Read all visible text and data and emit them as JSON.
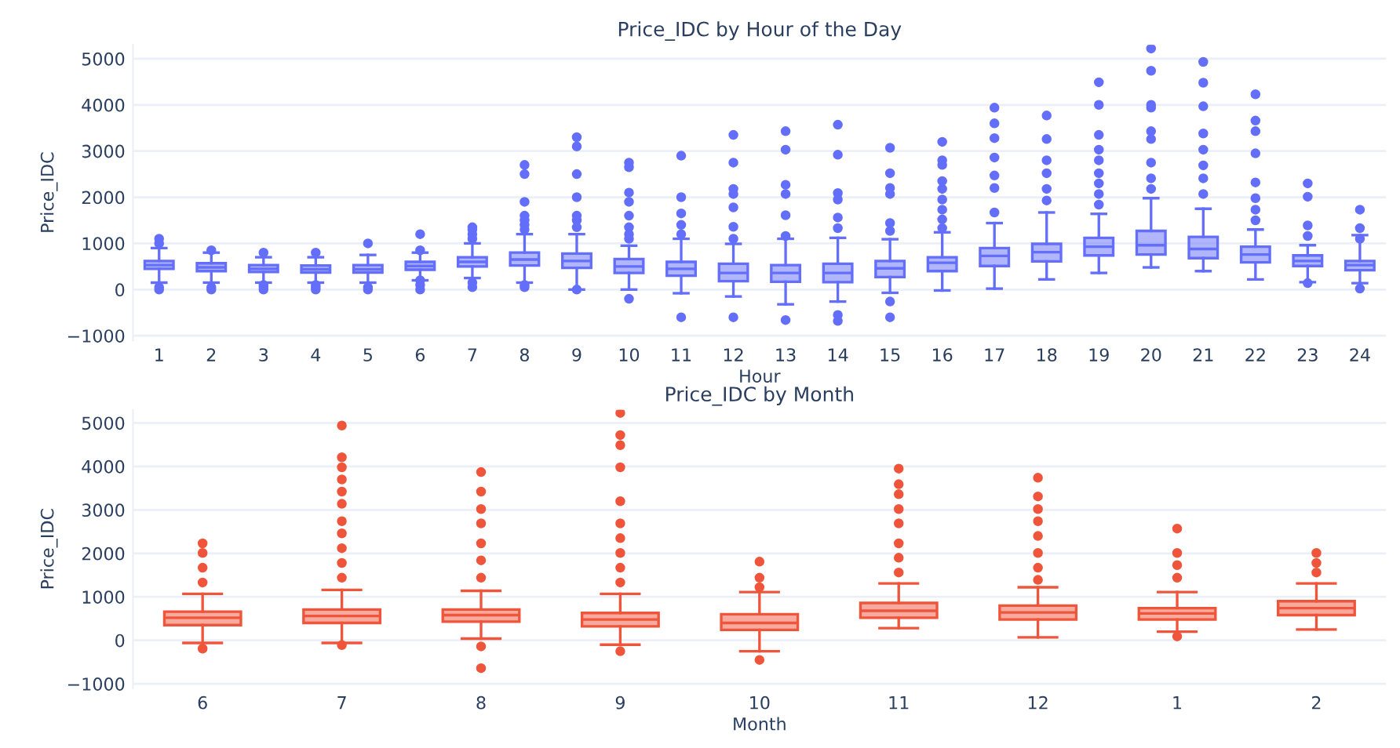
{
  "chart_data": [
    {
      "type": "box",
      "title": "Price_IDC by Hour of the Day",
      "xlabel": "Hour",
      "ylabel": "Price_IDC",
      "color": "#636efa",
      "grid": "y",
      "ylim": [
        -1100,
        5300
      ],
      "yticks": [
        -1000,
        0,
        1000,
        2000,
        3000,
        4000,
        5000
      ],
      "categories": [
        "1",
        "2",
        "3",
        "4",
        "5",
        "6",
        "7",
        "8",
        "9",
        "10",
        "11",
        "12",
        "13",
        "14",
        "15",
        "16",
        "17",
        "18",
        "19",
        "20",
        "21",
        "22",
        "23",
        "24"
      ],
      "boxes": [
        {
          "low": 150,
          "q1": 450,
          "median": 530,
          "q3": 620,
          "high": 900,
          "outliers": [
            0,
            50,
            1000,
            1100
          ]
        },
        {
          "low": 150,
          "q1": 400,
          "median": 480,
          "q3": 570,
          "high": 800,
          "outliers": [
            0,
            50,
            850
          ]
        },
        {
          "low": 150,
          "q1": 380,
          "median": 450,
          "q3": 530,
          "high": 700,
          "outliers": [
            0,
            50,
            100,
            800
          ]
        },
        {
          "low": 150,
          "q1": 370,
          "median": 440,
          "q3": 520,
          "high": 700,
          "outliers": [
            0,
            50,
            100,
            800
          ]
        },
        {
          "low": 150,
          "q1": 370,
          "median": 440,
          "q3": 530,
          "high": 750,
          "outliers": [
            0,
            50,
            1000
          ]
        },
        {
          "low": 200,
          "q1": 430,
          "median": 510,
          "q3": 600,
          "high": 800,
          "outliers": [
            0,
            100,
            200,
            850,
            1200
          ]
        },
        {
          "low": 250,
          "q1": 500,
          "median": 600,
          "q3": 700,
          "high": 1000,
          "outliers": [
            50,
            150,
            1100,
            1200,
            1300,
            1350
          ]
        },
        {
          "low": 150,
          "q1": 520,
          "median": 650,
          "q3": 800,
          "high": 1200,
          "outliers": [
            50,
            100,
            1300,
            1400,
            1500,
            1600,
            1900,
            2500,
            2700
          ]
        },
        {
          "low": 0,
          "q1": 470,
          "median": 620,
          "q3": 780,
          "high": 1200,
          "outliers": [
            0,
            1350,
            1500,
            1600,
            2000,
            2500,
            3100,
            3300
          ]
        },
        {
          "low": 0,
          "q1": 360,
          "median": 500,
          "q3": 660,
          "high": 950,
          "outliers": [
            -200,
            1100,
            1200,
            1350,
            1600,
            1900,
            2100,
            2650,
            2750
          ]
        },
        {
          "low": -80,
          "q1": 300,
          "median": 450,
          "q3": 600,
          "high": 1100,
          "outliers": [
            -600,
            1200,
            1400,
            1650,
            2000,
            2900
          ]
        },
        {
          "low": -150,
          "q1": 180,
          "median": 360,
          "q3": 560,
          "high": 990,
          "outliers": [
            -600,
            1100,
            1360,
            1780,
            2070,
            2180,
            2750,
            3350
          ]
        },
        {
          "low": -320,
          "q1": 170,
          "median": 360,
          "q3": 530,
          "high": 1100,
          "outliers": [
            -660,
            1160,
            1610,
            2070,
            2270,
            3030,
            3430
          ]
        },
        {
          "low": -260,
          "q1": 160,
          "median": 360,
          "q3": 560,
          "high": 1120,
          "outliers": [
            -680,
            -550,
            1330,
            1560,
            1950,
            2090,
            2920,
            3570
          ]
        },
        {
          "low": -70,
          "q1": 270,
          "median": 460,
          "q3": 620,
          "high": 1090,
          "outliers": [
            -600,
            -260,
            1270,
            1440,
            2070,
            2200,
            2520,
            3070
          ]
        },
        {
          "low": -20,
          "q1": 400,
          "median": 580,
          "q3": 700,
          "high": 1240,
          "outliers": [
            1330,
            1520,
            1730,
            1950,
            2180,
            2350,
            2700,
            2800,
            3200
          ]
        },
        {
          "low": 20,
          "q1": 510,
          "median": 730,
          "q3": 900,
          "high": 1440,
          "outliers": [
            1670,
            2200,
            2470,
            2860,
            3280,
            3600,
            3940
          ]
        },
        {
          "low": 220,
          "q1": 610,
          "median": 810,
          "q3": 990,
          "high": 1670,
          "outliers": [
            1930,
            2180,
            2520,
            2800,
            3260,
            3770
          ]
        },
        {
          "low": 360,
          "q1": 740,
          "median": 930,
          "q3": 1120,
          "high": 1640,
          "outliers": [
            1840,
            2070,
            2300,
            2520,
            2800,
            3030,
            3350,
            4000,
            4490
          ]
        },
        {
          "low": 480,
          "q1": 760,
          "median": 960,
          "q3": 1270,
          "high": 1980,
          "outliers": [
            2180,
            2410,
            2750,
            3260,
            3430,
            3940,
            4000,
            4740,
            5220
          ]
        },
        {
          "low": 400,
          "q1": 680,
          "median": 880,
          "q3": 1140,
          "high": 1750,
          "outliers": [
            2070,
            2410,
            2690,
            3030,
            3380,
            3970,
            4480,
            4930
          ]
        },
        {
          "low": 220,
          "q1": 590,
          "median": 760,
          "q3": 930,
          "high": 1300,
          "outliers": [
            1500,
            1730,
            1980,
            2320,
            2950,
            3430,
            3660,
            4230
          ]
        },
        {
          "low": 160,
          "q1": 510,
          "median": 620,
          "q3": 740,
          "high": 960,
          "outliers": [
            140,
            1160,
            1390,
            2010,
            2300
          ]
        },
        {
          "low": 140,
          "q1": 420,
          "median": 530,
          "q3": 620,
          "high": 1180,
          "outliers": [
            20,
            1100,
            1330,
            1730
          ]
        }
      ]
    },
    {
      "type": "box",
      "title": "Price_IDC by Month",
      "xlabel": "Month",
      "ylabel": "Price_IDC",
      "color": "#ef553b",
      "grid": "y",
      "ylim": [
        -1100,
        5300
      ],
      "yticks": [
        -1000,
        0,
        1000,
        2000,
        3000,
        4000,
        5000
      ],
      "categories": [
        "6",
        "7",
        "8",
        "9",
        "10",
        "11",
        "12",
        "1",
        "2"
      ],
      "boxes": [
        {
          "low": -60,
          "q1": 350,
          "median": 520,
          "q3": 660,
          "high": 1070,
          "outliers": [
            -190,
            1330,
            1670,
            2010,
            2230
          ]
        },
        {
          "low": -60,
          "q1": 400,
          "median": 560,
          "q3": 710,
          "high": 1160,
          "outliers": [
            -110,
            1440,
            1780,
            2120,
            2460,
            2740,
            3140,
            3420,
            3700,
            3980,
            4210,
            4940
          ]
        },
        {
          "low": 40,
          "q1": 430,
          "median": 580,
          "q3": 710,
          "high": 1140,
          "outliers": [
            -640,
            -140,
            1440,
            1840,
            2230,
            2690,
            3020,
            3420,
            3870
          ]
        },
        {
          "low": -100,
          "q1": 320,
          "median": 480,
          "q3": 630,
          "high": 1070,
          "outliers": [
            -250,
            1330,
            1670,
            2010,
            2350,
            2690,
            3200,
            3980,
            4490,
            4720,
            5230
          ]
        },
        {
          "low": -250,
          "q1": 240,
          "median": 400,
          "q3": 600,
          "high": 1110,
          "outliers": [
            -450,
            1220,
            1440,
            1810
          ]
        },
        {
          "low": 280,
          "q1": 520,
          "median": 680,
          "q3": 860,
          "high": 1310,
          "outliers": [
            1560,
            1900,
            2230,
            2690,
            3020,
            3360,
            3590,
            3950
          ]
        },
        {
          "low": 70,
          "q1": 480,
          "median": 640,
          "q3": 800,
          "high": 1220,
          "outliers": [
            1390,
            1670,
            2010,
            2400,
            2740,
            3020,
            3310,
            3740
          ]
        },
        {
          "low": 200,
          "q1": 480,
          "median": 620,
          "q3": 740,
          "high": 1110,
          "outliers": [
            90,
            1440,
            1730,
            2010,
            2570
          ]
        },
        {
          "low": 250,
          "q1": 580,
          "median": 740,
          "q3": 900,
          "high": 1310,
          "outliers": [
            1560,
            1780,
            2010
          ]
        }
      ]
    }
  ]
}
